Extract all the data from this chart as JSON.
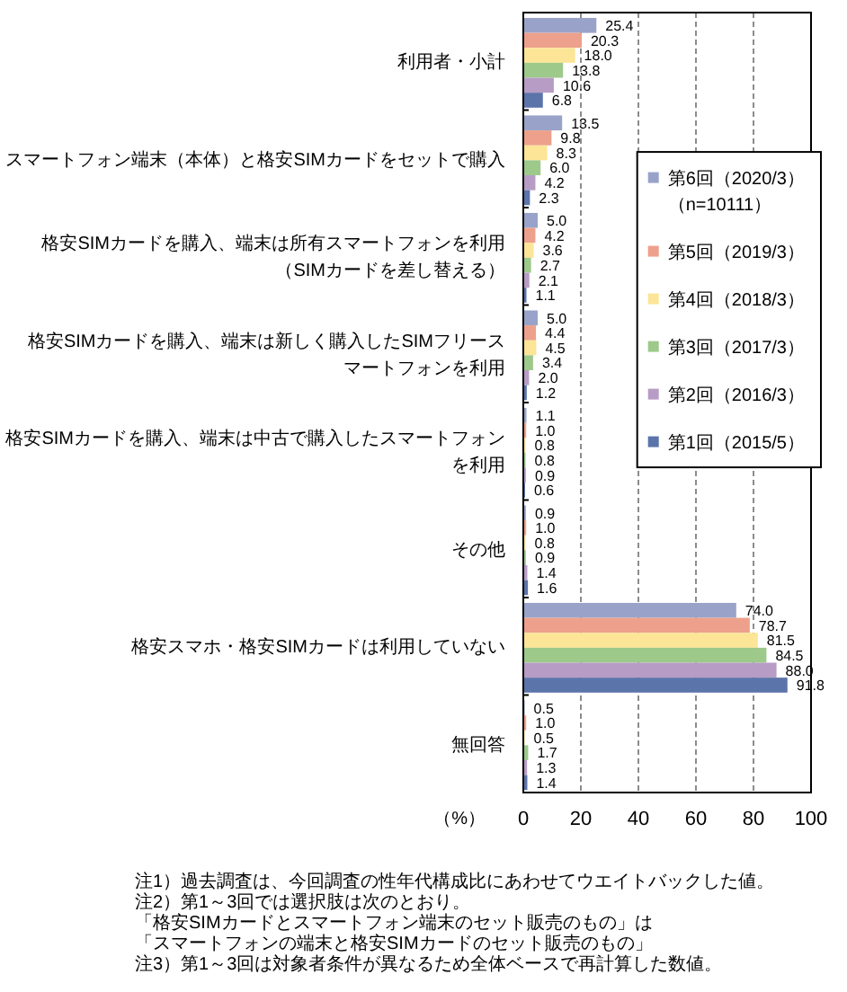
{
  "chart_data": {
    "type": "bar",
    "orientation": "horizontal",
    "categories": [
      "利用者・小計",
      "スマートフォン端末（本体）と格安SIMカードをセットで購入",
      "格安SIMカードを購入、端末は所有スマートフォンを利用（SIMカードを差し替える）",
      "格安SIMカードを購入、端末は新しく購入したSIMフリースマートフォンを利用",
      "格安SIMカードを購入、端末は中古で購入したスマートフォンを利用",
      "その他",
      "格安スマホ・格安SIMカードは利用していない",
      "無回答"
    ],
    "series": [
      {
        "name": "第6回（2020/3）（n=10111）",
        "color": "#99a3c9",
        "values": [
          25.4,
          13.5,
          5.0,
          5.0,
          1.1,
          0.9,
          74.0,
          0.5
        ],
        "value_labels": [
          "25.4",
          "13.5",
          "5.0",
          "5.0",
          "1.1",
          "0.9",
          "74.0",
          "0.5"
        ]
      },
      {
        "name": "第5回（2019/3）",
        "color": "#eda08b",
        "values": [
          20.3,
          9.8,
          4.2,
          4.4,
          1.0,
          1.0,
          78.7,
          1.0
        ],
        "value_labels": [
          "20.3",
          "9.8",
          "4.2",
          "4.4",
          "1.0",
          "1.0",
          "78.7",
          "1.0"
        ]
      },
      {
        "name": "第4回（2018/3）",
        "color": "#fce597",
        "values": [
          18.0,
          8.3,
          3.6,
          4.5,
          0.8,
          0.8,
          81.5,
          0.5
        ],
        "value_labels": [
          "18.0",
          "8.3",
          "3.6",
          "4.5",
          "0.8",
          "0.8",
          "81.5",
          "0.5"
        ]
      },
      {
        "name": "第3回（2017/3）",
        "color": "#9dc98b",
        "values": [
          13.8,
          6.0,
          2.7,
          3.4,
          0.8,
          0.9,
          84.5,
          1.7
        ],
        "value_labels": [
          "13.8",
          "6.0",
          "2.7",
          "3.4",
          "0.8",
          "0.9",
          "84.5",
          "1.7"
        ]
      },
      {
        "name": "第2回（2016/3）",
        "color": "#b79dc5",
        "values": [
          10.6,
          4.2,
          2.1,
          2.0,
          0.9,
          1.4,
          88.0,
          1.3
        ],
        "value_labels": [
          "10.6",
          "4.2",
          "2.1",
          "2.0",
          "0.9",
          "1.4",
          "88.0",
          "1.3"
        ]
      },
      {
        "name": "第1回（2015/5）",
        "color": "#5b74a9",
        "values": [
          6.8,
          2.3,
          1.1,
          1.2,
          0.6,
          1.6,
          91.8,
          1.4
        ],
        "value_labels": [
          "6.8",
          "2.3",
          "1.1",
          "1.2",
          "0.6",
          "1.6",
          "91.8",
          "1.4"
        ]
      }
    ],
    "xlim": [
      0,
      100
    ],
    "xticks": [
      0,
      20,
      40,
      60,
      80,
      100
    ],
    "xlabel": "（%）",
    "grid": "x",
    "legend": "right",
    "annotations": [
      "注1）過去調査は、今回調査の性年代構成比にあわせてウエイトバックした値。",
      "注2）第1～3回では選択肢は次のとおり。",
      "「格安SIMカードとスマートフォン端末のセット販売のもの」は",
      "「スマートフォンの端末と格安SIMカードのセット販売のもの」",
      "注3）第1～3回は対象者条件が異なるため全体ベースで再計算した数値。"
    ]
  }
}
